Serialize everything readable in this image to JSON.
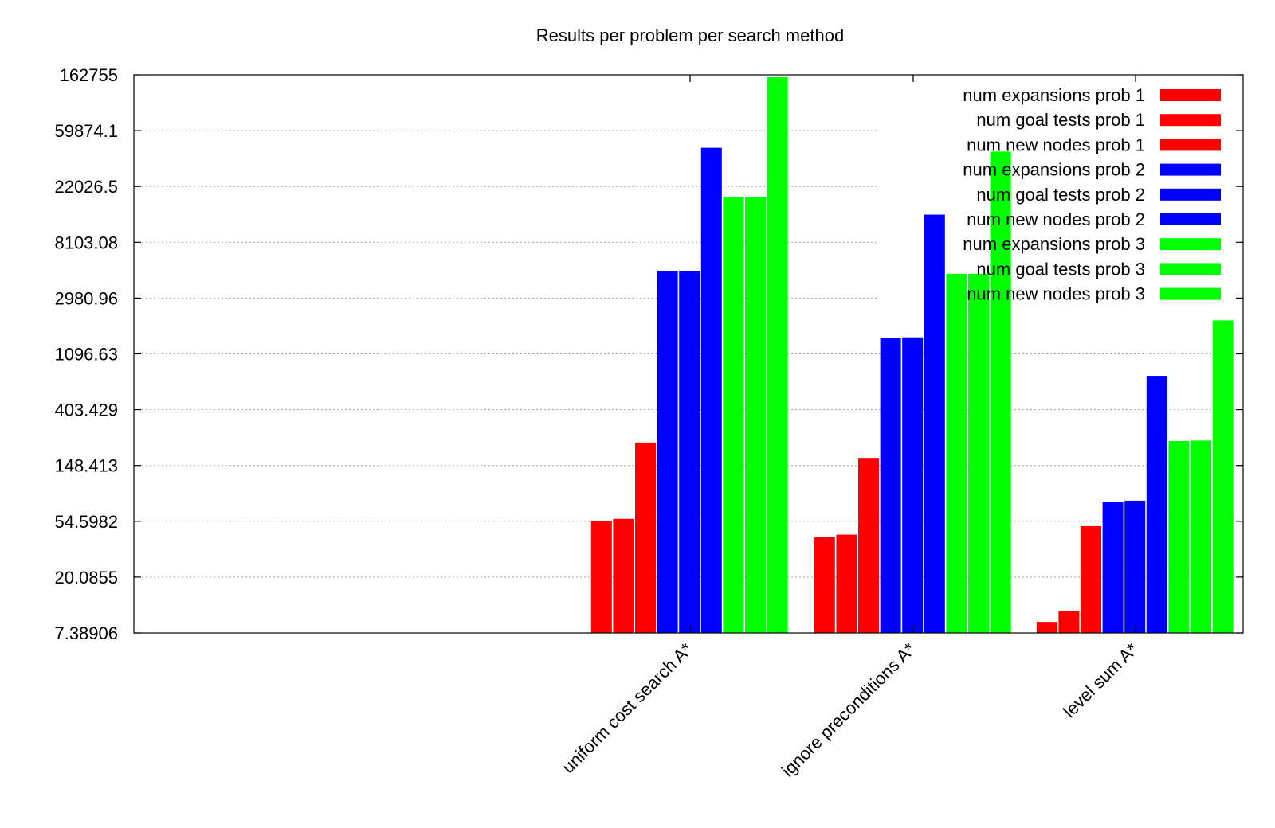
{
  "chart_data": {
    "type": "bar",
    "title": "Results per problem per search method",
    "xlabel": "",
    "ylabel": "",
    "yscale": "log",
    "ylim": [
      7.38906,
      162755
    ],
    "yticks": [
      "7.38906",
      "20.0855",
      "54.5982",
      "148.413",
      "403.429",
      "1096.63",
      "2980.96",
      "8103.08",
      "22026.5",
      "59874.1",
      "162755"
    ],
    "categories": [
      "uniform cost search A*",
      "ignore preconditions A*",
      "level sum A*"
    ],
    "grid": true,
    "legend_position": "top-right",
    "series": [
      {
        "name": "num expansions prob 1",
        "color": "#ff0000",
        "values": [
          55,
          41,
          9
        ]
      },
      {
        "name": "num goal tests prob 1",
        "color": "#ff0000",
        "values": [
          57,
          43,
          11
        ]
      },
      {
        "name": "num new nodes prob 1",
        "color": "#ff0000",
        "values": [
          224,
          170,
          50
        ]
      },
      {
        "name": "num expansions prob 2",
        "color": "#0000ff",
        "values": [
          4853,
          1450,
          77
        ]
      },
      {
        "name": "num goal tests prob 2",
        "color": "#0000ff",
        "values": [
          4855,
          1475,
          79
        ]
      },
      {
        "name": "num new nodes prob 2",
        "color": "#0000ff",
        "values": [
          44041,
          13303,
          740
        ]
      },
      {
        "name": "num expansions prob 3",
        "color": "#00ff00",
        "values": [
          18223,
          4610,
          230
        ]
      },
      {
        "name": "num goal tests prob 3",
        "color": "#00ff00",
        "values": [
          18225,
          4612,
          232
        ]
      },
      {
        "name": "num new nodes prob 3",
        "color": "#00ff00",
        "values": [
          155926,
          41190,
          2000
        ]
      }
    ]
  }
}
